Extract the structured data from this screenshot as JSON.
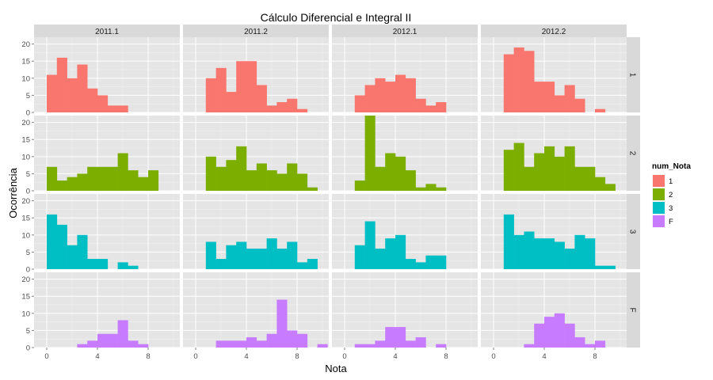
{
  "chart_data": {
    "type": "bar",
    "title": "Cálculo Diferencial e Integral II",
    "xlabel": "Nota",
    "ylabel": "Ocorrência",
    "xlim": [
      -1,
      10.5
    ],
    "ylim": [
      0,
      22
    ],
    "x_ticks": [
      0,
      4,
      8
    ],
    "y_ticks": [
      0,
      5,
      10,
      15,
      20
    ],
    "grid": true,
    "bin_width": 0.8,
    "bin_start": 0,
    "legend": {
      "title": "num_Nota",
      "placement": "right",
      "entries": [
        {
          "label": "1",
          "color": "#F8766D"
        },
        {
          "label": "2",
          "color": "#7CAE00"
        },
        {
          "label": "3",
          "color": "#00BFC4"
        },
        {
          "label": "F",
          "color": "#C77CFF"
        }
      ]
    },
    "col_facets": [
      "2011.1",
      "2011.2",
      "2012.1",
      "2012.2"
    ],
    "row_facets": [
      "1",
      "2",
      "3",
      "F"
    ],
    "panels": [
      [
        [
          11,
          16,
          10,
          14,
          7,
          5,
          2,
          2,
          0,
          0,
          0,
          0
        ],
        [
          0,
          10,
          13,
          6,
          15,
          15,
          8,
          2,
          3,
          4,
          1,
          0
        ],
        [
          0,
          5,
          8,
          10,
          9,
          11,
          10,
          4,
          2,
          3,
          0,
          0
        ],
        [
          0,
          17,
          19,
          18,
          9,
          9,
          5,
          8,
          4,
          0,
          1,
          0
        ]
      ],
      [
        [
          7,
          3,
          4,
          5,
          7,
          7,
          7,
          11,
          6,
          4,
          6,
          0
        ],
        [
          0,
          10,
          7,
          9,
          13,
          6,
          8,
          6,
          5,
          8,
          5,
          1
        ],
        [
          0,
          3,
          22,
          7,
          11,
          10,
          6,
          1,
          2,
          1,
          0,
          0
        ],
        [
          0,
          12,
          14,
          7,
          11,
          13,
          10,
          13,
          7,
          7,
          4,
          2
        ]
      ],
      [
        [
          16,
          13,
          7,
          10,
          3,
          3,
          0,
          2,
          1,
          0,
          0,
          0
        ],
        [
          0,
          8,
          3,
          7,
          8,
          6,
          6,
          9,
          6,
          8,
          2,
          3
        ],
        [
          0,
          7,
          14,
          6,
          9,
          10,
          3,
          2,
          4,
          4,
          0,
          0
        ],
        [
          0,
          16,
          10,
          11,
          9,
          9,
          8,
          6,
          10,
          9,
          1,
          1
        ]
      ],
      [
        [
          0,
          0,
          0,
          1,
          2,
          4,
          4,
          8,
          2,
          1,
          0,
          0
        ],
        [
          0,
          0,
          2,
          2,
          2,
          3,
          2,
          4,
          14,
          5,
          4,
          0,
          1
        ],
        [
          0,
          1,
          1,
          2,
          6,
          6,
          2,
          3,
          0,
          1,
          0,
          0
        ],
        [
          0,
          0,
          0,
          1,
          7,
          9,
          10,
          7,
          3,
          1,
          2,
          0
        ]
      ]
    ]
  }
}
